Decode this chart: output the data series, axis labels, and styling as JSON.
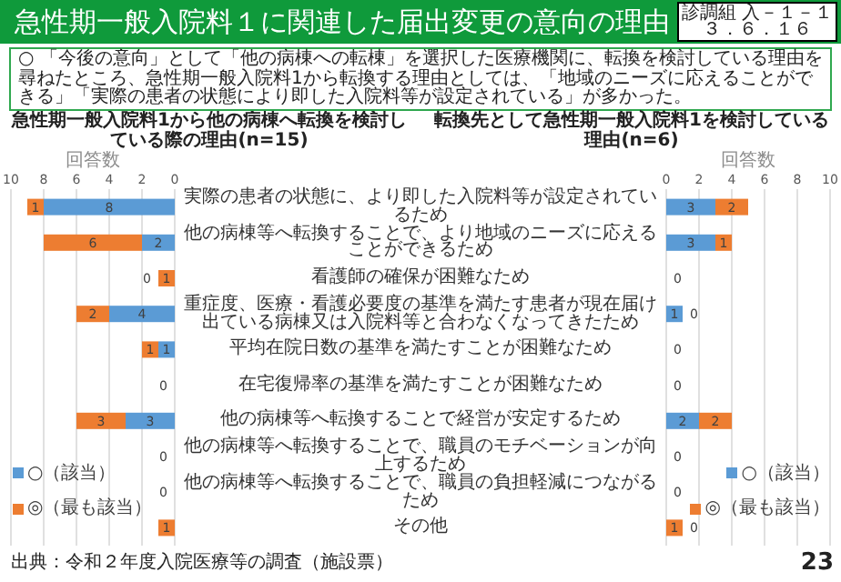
{
  "chart_data": [
    {
      "type": "bar",
      "orientation": "horizontal",
      "stacked": true,
      "title": "急性期一般入院料1から他の病棟へ転換を検討している際の理由(n=15)",
      "xlabel": "回答数",
      "categories": [
        "実際の患者の状態に、より即した入院料等が設定されているため",
        "他の病棟等へ転換することで、より地域のニーズに応えることができるため",
        "看護師の確保が困難なため",
        "重症度、医療・看護必要度の基準を満たす患者が現在届け出ている病棟又は入院料等と合わなくなってきたため",
        "平均在院日数の基準を満たすことが困難なため",
        "在宅復帰率の基準を満たすことが困難なため",
        "他の病棟等へ転換することで経営が安定するため",
        "他の病棟等へ転換することで、職員のモチベーションが向上するため",
        "他の病棟等へ転換することで、職員の負担軽減につながるため",
        "その他"
      ],
      "series": [
        {
          "name": "○（該当）",
          "color": "#5b9bd5",
          "values": [
            8,
            2,
            0,
            4,
            1,
            0,
            3,
            0,
            0,
            0
          ],
          "value_labels": [
            "8",
            "2",
            "0",
            "4",
            "1",
            "0",
            "3",
            "0",
            "0",
            null
          ]
        },
        {
          "name": "◎（最も該当）",
          "color": "#ed7d31",
          "values": [
            1,
            6,
            1,
            2,
            1,
            0,
            3,
            0,
            0,
            1
          ],
          "value_labels": [
            "1",
            "6",
            "1",
            "2",
            "1",
            null,
            "3",
            null,
            null,
            "1"
          ]
        }
      ],
      "xlim": [
        10,
        0
      ],
      "xticks": [
        0,
        2,
        4,
        6,
        8,
        10
      ],
      "grid": "x",
      "legend": "bottom left",
      "annotations": [
        "急性期一般入院料１に関連した届出変更の意向の理由",
        "診調組 入－１－１",
        "３．６．１６",
        "○ 「今後の意向」として「他の病棟への転棟」を選択した医療機関に、転換を検討している理由を尋ねたところ、急性期一般入院料1から転換する理由としては、「地域のニーズに応えることができる」「実際の患者の状態により即した入院料等が設定されている」が多かった。",
        "出典：令和２年度入院医療等の調査（施設票）",
        "23"
      ]
    },
    {
      "type": "bar",
      "orientation": "horizontal",
      "stacked": true,
      "title": "転換先として急性期一般入院料1を検討している理由(n=6)",
      "xlabel": "回答数",
      "categories": [
        "実際の患者の状態に、より即した入院料等が設定されているため",
        "他の病棟等へ転換することで、より地域のニーズに応えることができるため",
        "看護師の確保が困難なため",
        "重症度、医療・看護必要度の基準を満たす患者が現在届け出ている病棟又は入院料等と合わなくなってきたため",
        "平均在院日数の基準を満たすことが困難なため",
        "在宅復帰率の基準を満たすことが困難なため",
        "他の病棟等へ転換することで経営が安定するため",
        "他の病棟等へ転換することで、職員のモチベーションが向上するため",
        "他の病棟等へ転換することで、職員の負担軽減につながるため",
        "その他"
      ],
      "series": [
        {
          "name": "○（該当）",
          "color": "#5b9bd5",
          "values": [
            3,
            3,
            0,
            1,
            0,
            0,
            2,
            0,
            0,
            0
          ],
          "value_labels": [
            "3",
            "3",
            "0",
            "1",
            "0",
            "0",
            "2",
            "0",
            "0",
            "0"
          ]
        },
        {
          "name": "◎（最も該当）",
          "color": "#ed7d31",
          "values": [
            2,
            1,
            0,
            0,
            0,
            0,
            2,
            0,
            0,
            1
          ],
          "value_labels": [
            "2",
            "1",
            null,
            "0",
            null,
            null,
            "2",
            null,
            null,
            "1"
          ]
        }
      ],
      "xlim": [
        0,
        10
      ],
      "xticks": [
        0,
        2,
        4,
        6,
        8,
        10
      ],
      "grid": "x",
      "legend": "bottom right",
      "tick_labels": "x"
    }
  ]
}
